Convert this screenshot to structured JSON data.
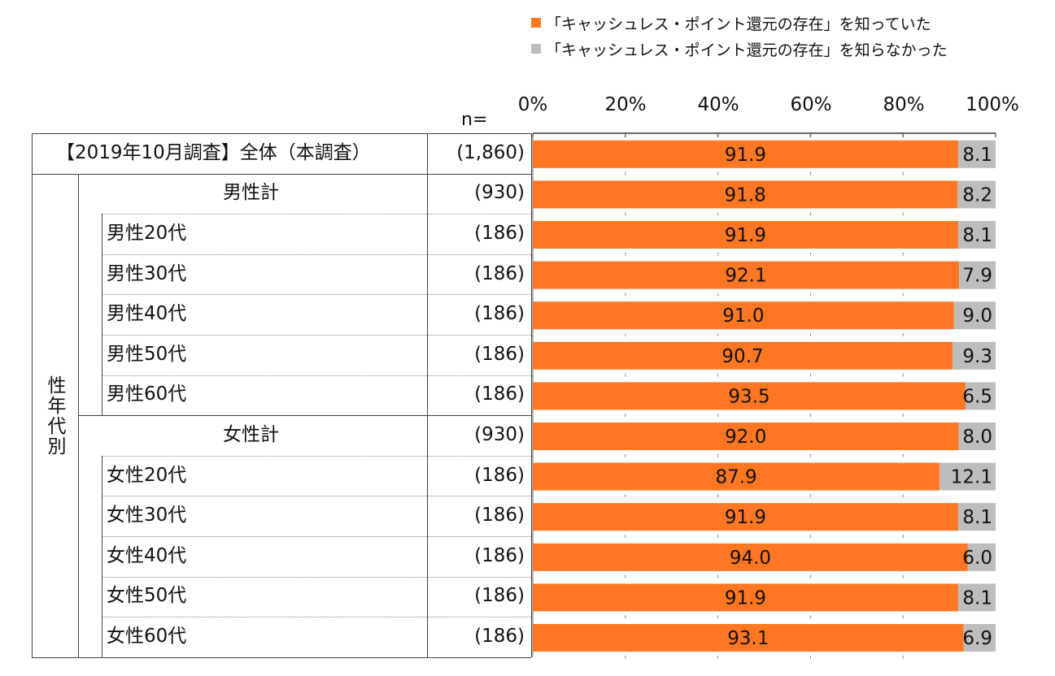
{
  "legend": [
    {
      "label": "「キャッシュレス・ポイント還元の存在」を知っていた",
      "color": "#FF7722"
    },
    {
      "label": "「キャッシュレス・ポイント還元の存在」を知らなかった",
      "color": "#BDBDBD"
    }
  ],
  "n_label": "n=",
  "axis_ticks": [
    "0%",
    "20%",
    "40%",
    "60%",
    "80%",
    "100%"
  ],
  "group_label": "性年代別",
  "rows": [
    {
      "label": "【2019年10月調査】全体（本調査）",
      "n": "(1,860)",
      "kind": "total"
    },
    {
      "label": "男性計",
      "n": "(930)",
      "kind": "subtotal"
    },
    {
      "label": "男性20代",
      "n": "(186)",
      "kind": "item"
    },
    {
      "label": "男性30代",
      "n": "(186)",
      "kind": "item"
    },
    {
      "label": "男性40代",
      "n": "(186)",
      "kind": "item"
    },
    {
      "label": "男性50代",
      "n": "(186)",
      "kind": "item"
    },
    {
      "label": "男性60代",
      "n": "(186)",
      "kind": "item"
    },
    {
      "label": "女性計",
      "n": "(930)",
      "kind": "subtotal"
    },
    {
      "label": "女性20代",
      "n": "(186)",
      "kind": "item"
    },
    {
      "label": "女性30代",
      "n": "(186)",
      "kind": "item"
    },
    {
      "label": "女性40代",
      "n": "(186)",
      "kind": "item"
    },
    {
      "label": "女性50代",
      "n": "(186)",
      "kind": "item"
    },
    {
      "label": "女性60代",
      "n": "(186)",
      "kind": "item"
    }
  ],
  "chart_data": {
    "type": "bar",
    "orientation": "horizontal",
    "stacked": true,
    "categories": [
      "【2019年10月調査】全体（本調査）",
      "男性計",
      "男性20代",
      "男性30代",
      "男性40代",
      "男性50代",
      "男性60代",
      "女性計",
      "女性20代",
      "女性30代",
      "女性40代",
      "女性50代",
      "女性60代"
    ],
    "series": [
      {
        "name": "「キャッシュレス・ポイント還元の存在」を知っていた",
        "color": "#FF7722",
        "values": [
          91.9,
          91.8,
          91.9,
          92.1,
          91.0,
          90.7,
          93.5,
          92.0,
          87.9,
          91.9,
          94.0,
          91.9,
          93.1
        ]
      },
      {
        "name": "「キャッシュレス・ポイント還元の存在」を知らなかった",
        "color": "#BDBDBD",
        "values": [
          8.1,
          8.2,
          8.1,
          7.9,
          9.0,
          9.3,
          6.5,
          8.0,
          12.1,
          8.1,
          6.0,
          8.1,
          6.9
        ]
      }
    ],
    "xlim": [
      0,
      100
    ],
    "xticks": [
      "0%",
      "20%",
      "40%",
      "60%",
      "80%",
      "100%"
    ],
    "grid": false,
    "legend_position": "top"
  }
}
